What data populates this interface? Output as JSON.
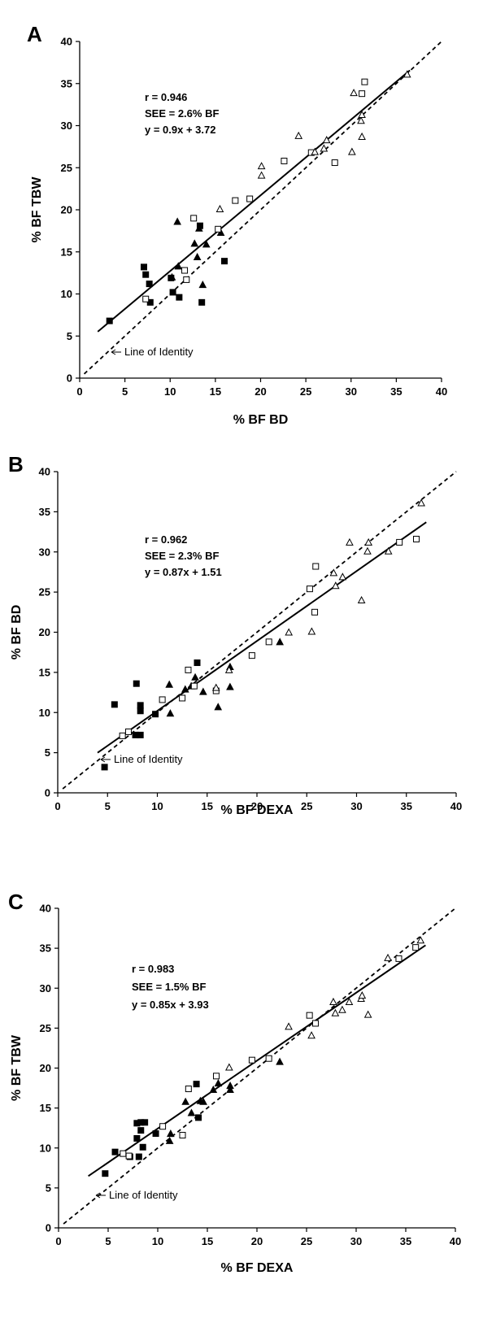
{
  "chart_data": [
    {
      "type": "scatter",
      "panel": "A",
      "xlabel": "% BF BD",
      "ylabel": "% BF TBW",
      "xlim": [
        0,
        40
      ],
      "ylim": [
        0,
        40
      ],
      "xticks": [
        "0",
        "5",
        "10",
        "15",
        "20",
        "25",
        "30",
        "35",
        "40"
      ],
      "yticks": [
        "0",
        "5",
        "10",
        "15",
        "20",
        "25",
        "30",
        "35",
        "40"
      ],
      "annotations": [
        "r = 0.946",
        "SEE = 2.6% BF",
        "y = 0.9x + 3.72"
      ],
      "identity_label": "Line of Identity",
      "regression": {
        "slope": 0.9,
        "intercept": 3.72,
        "x_range": [
          2,
          36.5
        ]
      },
      "identity": {
        "x_range": [
          0.5,
          40
        ]
      },
      "series": [
        {
          "marker": "filled-square",
          "points": [
            [
              3.3,
              6.8
            ],
            [
              7.1,
              13.2
            ],
            [
              7.3,
              12.3
            ],
            [
              7.7,
              11.2
            ],
            [
              7.8,
              9.0
            ],
            [
              10.3,
              10.2
            ],
            [
              10.1,
              11.9
            ],
            [
              11.0,
              9.6
            ],
            [
              13.3,
              18.1
            ],
            [
              13.5,
              9.0
            ],
            [
              16.0,
              13.9
            ]
          ]
        },
        {
          "marker": "filled-triangle",
          "points": [
            [
              10.8,
              18.6
            ],
            [
              12.7,
              16.0
            ],
            [
              13.0,
              14.4
            ],
            [
              13.2,
              17.8
            ],
            [
              13.6,
              11.1
            ],
            [
              14.0,
              15.9
            ],
            [
              15.6,
              17.3
            ],
            [
              10.2,
              12.0
            ],
            [
              10.9,
              13.3
            ]
          ]
        },
        {
          "marker": "open-square",
          "points": [
            [
              7.3,
              9.4
            ],
            [
              11.6,
              12.8
            ],
            [
              11.8,
              11.7
            ],
            [
              12.6,
              19.0
            ],
            [
              15.3,
              17.7
            ],
            [
              17.2,
              21.1
            ],
            [
              18.8,
              21.3
            ],
            [
              22.6,
              25.8
            ],
            [
              25.6,
              26.8
            ],
            [
              28.2,
              25.6
            ],
            [
              31.2,
              33.8
            ],
            [
              31.5,
              35.2
            ]
          ]
        },
        {
          "marker": "open-triangle",
          "points": [
            [
              15.5,
              20.1
            ],
            [
              20.1,
              25.2
            ],
            [
              20.1,
              24.1
            ],
            [
              24.2,
              28.8
            ],
            [
              26.0,
              26.9
            ],
            [
              27.0,
              27.3
            ],
            [
              27.3,
              28.3
            ],
            [
              30.1,
              26.9
            ],
            [
              30.3,
              33.9
            ],
            [
              31.1,
              30.6
            ],
            [
              31.2,
              28.7
            ],
            [
              31.2,
              31.3
            ],
            [
              36.2,
              36.1
            ]
          ]
        }
      ]
    },
    {
      "type": "scatter",
      "panel": "B",
      "xlabel": "% BF DEXA",
      "ylabel": "% BF BD",
      "xlim": [
        0,
        40
      ],
      "ylim": [
        0,
        40
      ],
      "xticks": [
        "0",
        "5",
        "10",
        "15",
        "20",
        "25",
        "30",
        "35",
        "40"
      ],
      "yticks": [
        "0",
        "5",
        "10",
        "15",
        "20",
        "25",
        "30",
        "35",
        "40"
      ],
      "annotations": [
        "r = 0.962",
        "SEE = 2.3% BF",
        "y = 0.87x + 1.51"
      ],
      "identity_label": "Line of Identity",
      "regression": {
        "slope": 0.87,
        "intercept": 1.51,
        "x_range": [
          4,
          37
        ]
      },
      "identity": {
        "x_range": [
          0.5,
          40
        ]
      },
      "series": [
        {
          "marker": "filled-square",
          "points": [
            [
              4.7,
              3.2
            ],
            [
              5.7,
              11.0
            ],
            [
              7.8,
              7.2
            ],
            [
              7.9,
              13.6
            ],
            [
              8.3,
              7.2
            ],
            [
              8.3,
              10.2
            ],
            [
              8.3,
              10.9
            ],
            [
              9.8,
              9.8
            ],
            [
              14.0,
              16.2
            ]
          ]
        },
        {
          "marker": "filled-triangle",
          "points": [
            [
              11.2,
              13.5
            ],
            [
              11.3,
              9.9
            ],
            [
              12.8,
              12.9
            ],
            [
              13.4,
              13.3
            ],
            [
              13.8,
              14.4
            ],
            [
              14.6,
              12.6
            ],
            [
              16.1,
              10.7
            ],
            [
              17.3,
              13.2
            ],
            [
              17.3,
              15.7
            ],
            [
              22.3,
              18.8
            ]
          ]
        },
        {
          "marker": "open-square",
          "points": [
            [
              6.5,
              7.1
            ],
            [
              7.1,
              7.6
            ],
            [
              10.5,
              11.6
            ],
            [
              12.5,
              11.8
            ],
            [
              13.1,
              15.3
            ],
            [
              13.7,
              13.3
            ],
            [
              15.9,
              12.7
            ],
            [
              19.5,
              17.1
            ],
            [
              21.2,
              18.8
            ],
            [
              25.3,
              25.4
            ],
            [
              25.8,
              22.5
            ],
            [
              25.9,
              28.2
            ],
            [
              34.3,
              31.2
            ],
            [
              36.0,
              31.6
            ]
          ]
        },
        {
          "marker": "open-triangle",
          "points": [
            [
              15.9,
              13.1
            ],
            [
              17.2,
              15.3
            ],
            [
              23.2,
              20.0
            ],
            [
              25.5,
              20.1
            ],
            [
              27.7,
              27.4
            ],
            [
              27.9,
              25.8
            ],
            [
              28.6,
              26.9
            ],
            [
              29.3,
              31.2
            ],
            [
              30.5,
              24.0
            ],
            [
              31.1,
              30.1
            ],
            [
              31.2,
              31.2
            ],
            [
              33.2,
              30.1
            ],
            [
              36.5,
              36.1
            ]
          ]
        }
      ]
    },
    {
      "type": "scatter",
      "panel": "C",
      "xlabel": "% BF DEXA",
      "ylabel": "% BF TBW",
      "xlim": [
        0,
        40
      ],
      "ylim": [
        0,
        40
      ],
      "xticks": [
        "0",
        "5",
        "10",
        "15",
        "20",
        "25",
        "30",
        "35",
        "40"
      ],
      "yticks": [
        "0",
        "5",
        "10",
        "15",
        "20",
        "25",
        "30",
        "35",
        "40"
      ],
      "annotations": [
        "r = 0.983",
        "SEE = 1.5% BF",
        "y = 0.85x + 3.93"
      ],
      "identity_label": "Line of Identity",
      "regression": {
        "slope": 0.85,
        "intercept": 3.93,
        "x_range": [
          3,
          37
        ]
      },
      "identity": {
        "x_range": [
          0.5,
          40
        ]
      },
      "series": [
        {
          "marker": "filled-square",
          "points": [
            [
              4.7,
              6.8
            ],
            [
              5.7,
              9.5
            ],
            [
              7.2,
              8.9
            ],
            [
              7.9,
              11.2
            ],
            [
              7.9,
              13.1
            ],
            [
              8.1,
              8.9
            ],
            [
              8.3,
              12.2
            ],
            [
              8.5,
              10.1
            ],
            [
              8.3,
              13.2
            ],
            [
              8.7,
              13.2
            ],
            [
              9.8,
              11.8
            ],
            [
              13.9,
              18.0
            ],
            [
              14.1,
              13.8
            ]
          ]
        },
        {
          "marker": "filled-triangle",
          "points": [
            [
              11.2,
              10.9
            ],
            [
              11.3,
              11.8
            ],
            [
              12.8,
              15.8
            ],
            [
              13.4,
              14.4
            ],
            [
              14.3,
              15.9
            ],
            [
              14.6,
              15.8
            ],
            [
              15.6,
              17.3
            ],
            [
              16.1,
              18.1
            ],
            [
              17.3,
              17.3
            ],
            [
              17.3,
              17.8
            ],
            [
              22.3,
              20.8
            ]
          ]
        },
        {
          "marker": "open-square",
          "points": [
            [
              6.5,
              9.3
            ],
            [
              7.1,
              9.0
            ],
            [
              10.5,
              12.7
            ],
            [
              12.5,
              11.6
            ],
            [
              13.1,
              17.4
            ],
            [
              15.9,
              19.0
            ],
            [
              19.5,
              21.0
            ],
            [
              21.2,
              21.2
            ],
            [
              25.3,
              26.6
            ],
            [
              25.9,
              25.6
            ],
            [
              34.3,
              33.7
            ],
            [
              36.0,
              35.1
            ]
          ]
        },
        {
          "marker": "open-triangle",
          "points": [
            [
              17.2,
              20.1
            ],
            [
              23.2,
              25.2
            ],
            [
              25.5,
              24.1
            ],
            [
              27.7,
              28.3
            ],
            [
              27.9,
              26.9
            ],
            [
              28.6,
              27.3
            ],
            [
              29.3,
              28.3
            ],
            [
              30.5,
              28.7
            ],
            [
              30.6,
              29.1
            ],
            [
              31.2,
              26.7
            ],
            [
              33.2,
              33.8
            ],
            [
              36.5,
              36.0
            ]
          ]
        }
      ]
    }
  ]
}
